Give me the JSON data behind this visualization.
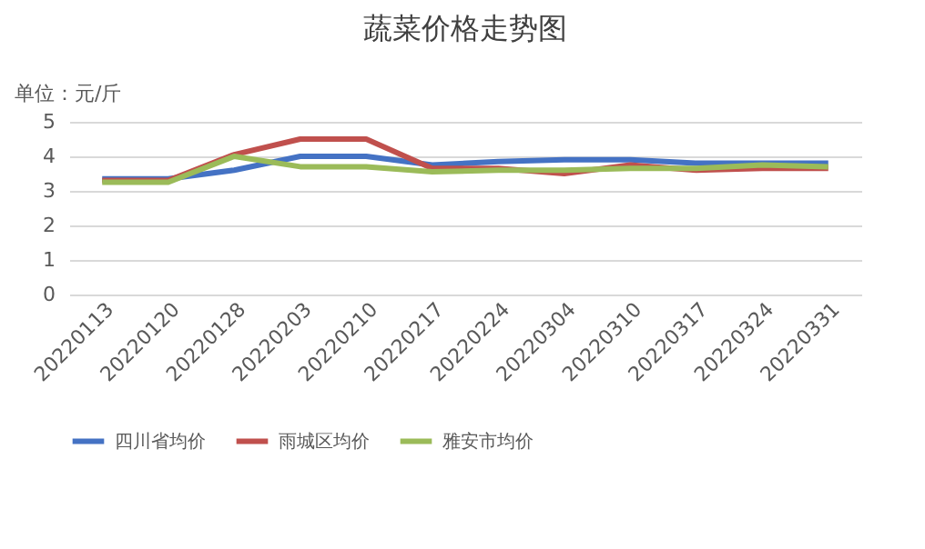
{
  "chart_data": {
    "type": "line",
    "title": "蔬菜价格走势图",
    "annotations": [
      "单位：元/斤"
    ],
    "categories": [
      "20220113",
      "20220120",
      "20220128",
      "20220203",
      "20220210",
      "20220217",
      "20220224",
      "20220304",
      "20220310",
      "20220317",
      "20220324",
      "20220331"
    ],
    "series": [
      {
        "name": "四川省均价",
        "color": "#4472c4",
        "values": [
          3.35,
          3.35,
          3.6,
          4.0,
          4.0,
          3.75,
          3.85,
          3.9,
          3.9,
          3.8,
          3.8,
          3.8
        ]
      },
      {
        "name": "雨城区均价",
        "color": "#c0504d",
        "values": [
          3.3,
          3.3,
          4.05,
          4.5,
          4.5,
          3.65,
          3.65,
          3.5,
          3.75,
          3.6,
          3.65,
          3.65
        ]
      },
      {
        "name": "雅安市均价",
        "color": "#9bbb59",
        "values": [
          3.25,
          3.25,
          4.0,
          3.7,
          3.7,
          3.55,
          3.6,
          3.6,
          3.65,
          3.65,
          3.75,
          3.7
        ]
      }
    ],
    "ylim": [
      0,
      5
    ],
    "yticks": [
      0,
      1,
      2,
      3,
      4,
      5
    ],
    "grid": "y",
    "legend": "bottom",
    "marker": "none",
    "line_style": "solid"
  }
}
